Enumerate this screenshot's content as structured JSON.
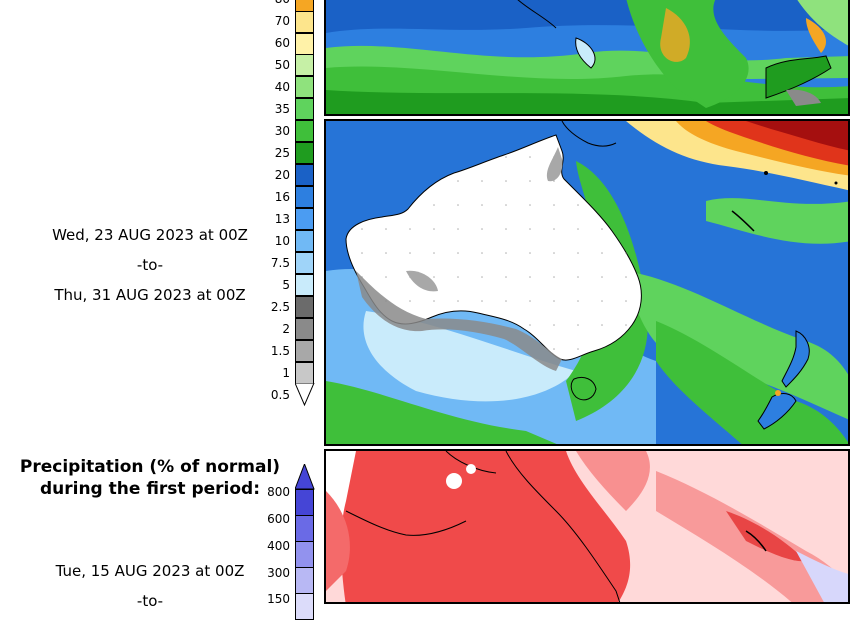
{
  "panel1": {
    "date_start": "Wed, 23 AUG 2023 at 00Z",
    "date_sep": "-to-",
    "date_end": "Thu, 31 AUG 2023 at 00Z",
    "colorbar_ticks": [
      "80",
      "70",
      "60",
      "50",
      "40",
      "35",
      "30",
      "25",
      "20",
      "16",
      "13",
      "10",
      "7.5",
      "5",
      "2.5",
      "2",
      "1.5",
      "1",
      "0.5"
    ],
    "colorbar_colors": [
      "#f5a623",
      "#f8c64f",
      "#fde58c",
      "#fff2a8",
      "#c6f0a6",
      "#8fe27d",
      "#5fd35d",
      "#3fbf3a",
      "#1f9c1f",
      "#1a61c6",
      "#2d7fe0",
      "#4b9cf2",
      "#70b9f5",
      "#9fd4f9",
      "#c9ebfb",
      "#6b6b6b",
      "#8a8a8a",
      "#a8a8a8",
      "#c8c8c8"
    ]
  },
  "panel2": {
    "heading_line1": "Precipitation (% of normal)",
    "heading_line2": "during the first period:",
    "date_start": "Tue, 15 AUG 2023 at 00Z",
    "date_sep": "-to-",
    "colorbar_ticks": [
      "800",
      "600",
      "400",
      "300",
      "150"
    ],
    "colorbar_colors": [
      "#4545d6",
      "#6a6ae6",
      "#9292ee",
      "#b8b8f4",
      "#dcdcfa"
    ]
  }
}
